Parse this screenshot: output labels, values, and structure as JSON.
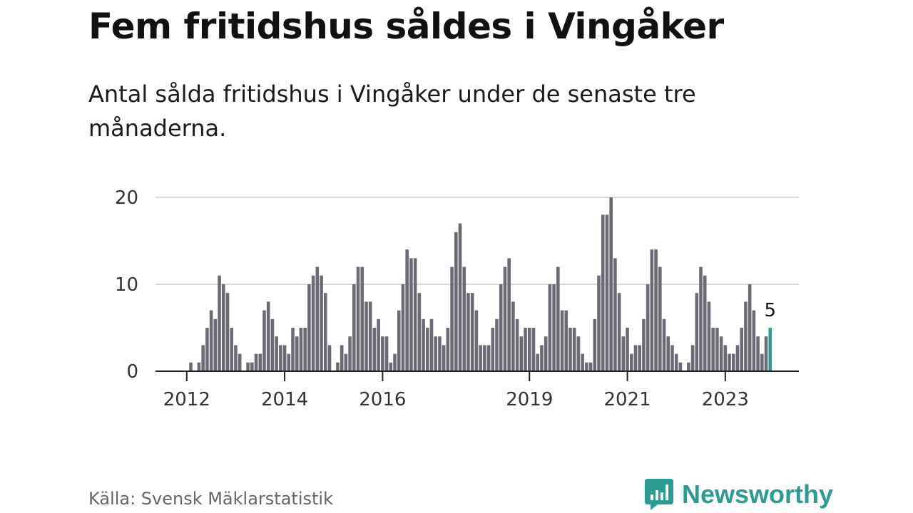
{
  "title": "Fem fritidshus såldes i Vingåker",
  "subtitle": "Antal sålda fritidshus i Vingåker under de senaste tre månaderna.",
  "source": "Källa: Svensk Mäklarstatistik",
  "brand": {
    "name": "Newsworthy",
    "icon": "newsworthy-logo-icon",
    "color": "#2a9d93"
  },
  "chart_data": {
    "type": "bar",
    "start": "2012-01",
    "values": [
      0,
      1,
      0,
      1,
      3,
      5,
      7,
      6,
      11,
      10,
      9,
      5,
      3,
      2,
      0,
      1,
      1,
      2,
      2,
      7,
      8,
      6,
      4,
      3,
      3,
      2,
      5,
      4,
      5,
      5,
      10,
      11,
      12,
      11,
      9,
      3,
      0,
      1,
      3,
      2,
      4,
      10,
      12,
      12,
      8,
      8,
      5,
      6,
      4,
      4,
      1,
      2,
      7,
      10,
      14,
      13,
      13,
      9,
      6,
      5,
      6,
      4,
      4,
      3,
      5,
      12,
      16,
      17,
      12,
      9,
      9,
      7,
      3,
      3,
      3,
      5,
      6,
      10,
      12,
      13,
      8,
      6,
      4,
      5,
      5,
      5,
      2,
      3,
      4,
      10,
      10,
      12,
      7,
      7,
      5,
      5,
      4,
      2,
      1,
      1,
      6,
      11,
      18,
      18,
      20,
      13,
      9,
      4,
      5,
      2,
      3,
      3,
      6,
      10,
      14,
      14,
      12,
      6,
      4,
      3,
      2,
      1,
      0,
      1,
      3,
      9,
      12,
      11,
      8,
      5,
      5,
      4,
      3,
      2,
      2,
      3,
      5,
      8,
      10,
      7,
      4,
      2,
      4,
      5
    ],
    "ylim": [
      0,
      20
    ],
    "yticks": [
      0,
      10,
      20
    ],
    "xticks": [
      "2012",
      "2014",
      "2016",
      "2019",
      "2021",
      "2023"
    ],
    "highlight_label": "5",
    "bar_color": "#6b6b75",
    "highlight_color": "#2a9d93",
    "grid": true
  }
}
